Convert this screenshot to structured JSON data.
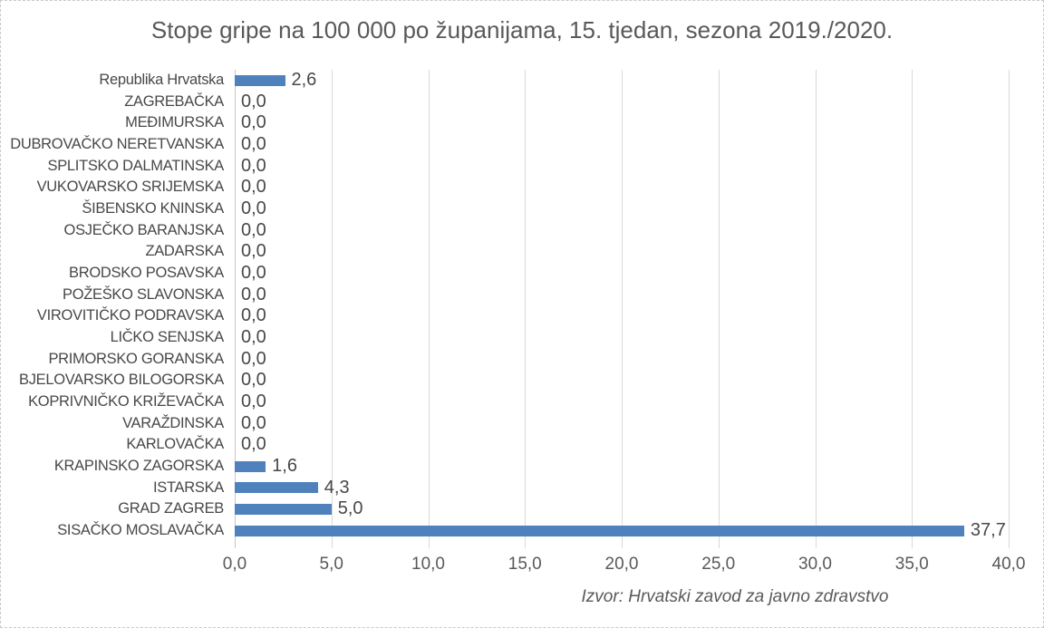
{
  "chart_data": {
    "type": "bar",
    "orientation": "horizontal",
    "title": "Stope gripe na 100 000 po županijama, 15. tjedan, sezona 2019./2020.",
    "source": "Izvor: Hrvatski zavod za javno zdravstvo",
    "xlabel": "",
    "ylabel": "",
    "xlim": [
      0,
      40
    ],
    "xtick_step": 5,
    "xtick_labels": [
      "0,0",
      "5,0",
      "10,0",
      "15,0",
      "20,0",
      "25,0",
      "30,0",
      "35,0",
      "40,0"
    ],
    "grid": true,
    "legend": false,
    "decimal_separator": ",",
    "colors": {
      "bar": "#4F81BD",
      "gridline": "#d9d9d9",
      "axis_line": "#c6c6c6",
      "title_text": "#595959",
      "tick_text": "#595959",
      "label_text": "#484848"
    },
    "categories": [
      "Republika Hrvatska",
      "ZAGREBAČKA",
      "MEĐIMURSKA",
      "DUBROVAČKO NERETVANSKA",
      "SPLITSKO DALMATINSKA",
      "VUKOVARSKO SRIJEMSKA",
      "ŠIBENSKO KNINSKA",
      "OSJEČKO BARANJSKA",
      "ZADARSKA",
      "BRODSKO POSAVSKA",
      "POŽEŠKO SLAVONSKA",
      "VIROVITIČKO PODRAVSKA",
      "LIČKO SENJSKA",
      "PRIMORSKO GORANSKA",
      "BJELOVARSKO BILOGORSKA",
      "KOPRIVNIČKO KRIŽEVAČKA",
      "VARAŽDINSKA",
      "KARLOVAČKA",
      "KRAPINSKO ZAGORSKA",
      "ISTARSKA",
      "GRAD ZAGREB",
      "SISAČKO MOSLAVAČKA"
    ],
    "values": [
      2.6,
      0,
      0,
      0,
      0,
      0,
      0,
      0,
      0,
      0,
      0,
      0,
      0,
      0,
      0,
      0,
      0,
      0,
      1.6,
      4.3,
      5.0,
      37.7
    ],
    "value_labels": [
      "2,6",
      "0,0",
      "0,0",
      "0,0",
      "0,0",
      "0,0",
      "0,0",
      "0,0",
      "0,0",
      "0,0",
      "0,0",
      "0,0",
      "0,0",
      "0,0",
      "0,0",
      "0,0",
      "0,0",
      "0,0",
      "1,6",
      "4,3",
      "5,0",
      "37,7"
    ]
  }
}
